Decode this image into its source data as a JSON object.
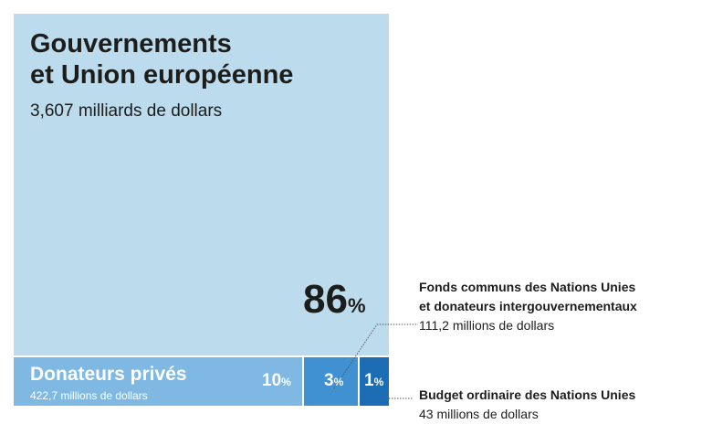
{
  "chart_data": {
    "type": "treemap",
    "segments": [
      {
        "id": "governments",
        "label_lines": [
          "Gouvernements",
          "et Union européenne"
        ],
        "value_text": "3,607 milliards de dollars",
        "percent": 86,
        "percent_text": "86",
        "color": "#bcdcee"
      },
      {
        "id": "private",
        "label": "Donateurs privés",
        "value_text": "422,7 millions de dollars",
        "percent": 10,
        "percent_text": "10",
        "color": "#7fb9e3"
      },
      {
        "id": "pooled",
        "label_lines": [
          "Fonds communs des Nations Unies",
          "et donateurs intergouvernementaux"
        ],
        "value_text": "111,2 millions de dollars",
        "percent": 3,
        "percent_text": "3",
        "color": "#3f91d1"
      },
      {
        "id": "regular",
        "label": "Budget ordinaire des Nations Unies",
        "value_text": "43 millions de dollars",
        "percent": 1,
        "percent_text": "1",
        "color": "#1d6db5"
      }
    ],
    "percent_symbol": "%"
  }
}
